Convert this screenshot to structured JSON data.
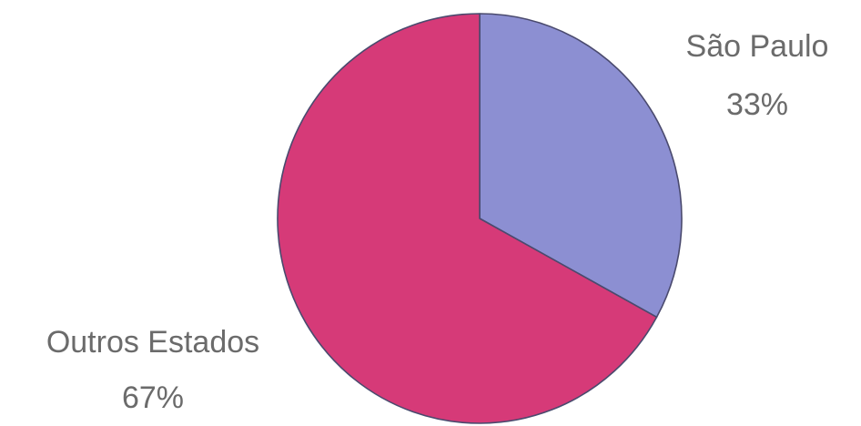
{
  "chart_data": {
    "type": "pie",
    "slices": [
      {
        "label": "São Paulo",
        "value": 33,
        "value_label": "33%",
        "color": "#8c8fd2"
      },
      {
        "label": "Outros Estados",
        "value": 67,
        "value_label": "67%",
        "color": "#d63a78"
      }
    ],
    "start": "12 o'clock",
    "direction": "clockwise",
    "legend": "none",
    "label_placement": "outside"
  }
}
